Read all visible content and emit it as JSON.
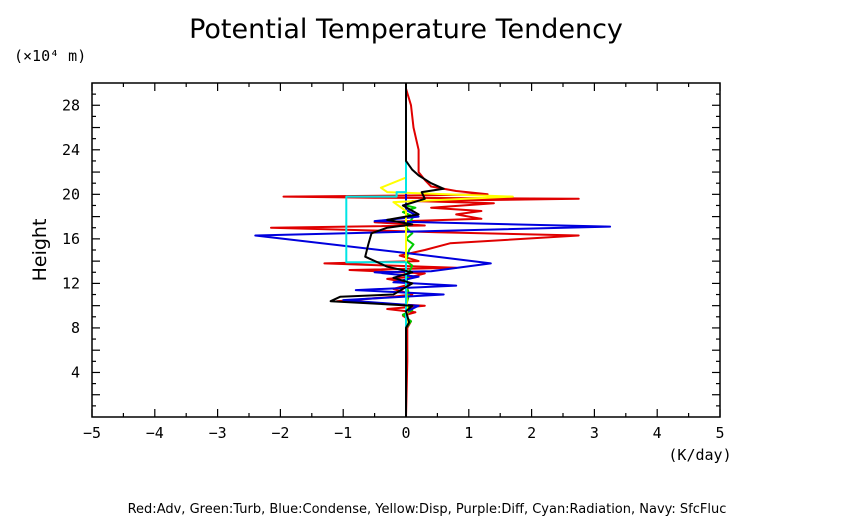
{
  "chart_data": {
    "type": "line",
    "title": "Potential Temperature Tendency",
    "ylabel": "Height",
    "y_unit_label": "(×10⁴ m)",
    "xlabel": "(K/day)",
    "xlim": [
      -5,
      5
    ],
    "ylim": [
      0,
      30
    ],
    "x_ticks": [
      -5,
      -4,
      -3,
      -2,
      -1,
      0,
      1,
      2,
      3,
      4,
      5
    ],
    "y_ticks": [
      4,
      8,
      12,
      16,
      20,
      24,
      28
    ],
    "grid": false,
    "legend_text": "Red:Adv, Green:Turb, Blue:Condense, Yellow:Disp, Purple:Diff, Cyan:Radiation, Navy: SfcFluc",
    "legend_placement": "bottom",
    "series": [
      {
        "name": "Adv",
        "color": "#e00000",
        "points": [
          [
            0,
            0
          ],
          [
            0.02,
            5
          ],
          [
            0.02,
            8
          ],
          [
            0.08,
            8.6
          ],
          [
            -0.05,
            9.1
          ],
          [
            0.15,
            9.4
          ],
          [
            -0.3,
            9.7
          ],
          [
            0.3,
            10.0
          ],
          [
            -1.1,
            10.4
          ],
          [
            -0.2,
            10.8
          ],
          [
            0.1,
            11.0
          ],
          [
            -0.2,
            11.5
          ],
          [
            0.1,
            12.0
          ],
          [
            -0.3,
            12.4
          ],
          [
            0.1,
            12.6
          ],
          [
            0.3,
            12.9
          ],
          [
            -0.9,
            13.2
          ],
          [
            0.8,
            13.4
          ],
          [
            -1.3,
            13.8
          ],
          [
            0.2,
            14.0
          ],
          [
            -0.1,
            14.5
          ],
          [
            0.3,
            15.0
          ],
          [
            0.7,
            15.6
          ],
          [
            2.75,
            16.3
          ],
          [
            0.5,
            16.6
          ],
          [
            -2.15,
            17.0
          ],
          [
            0.3,
            17.2
          ],
          [
            -0.5,
            17.5
          ],
          [
            1.2,
            17.8
          ],
          [
            0.8,
            18.2
          ],
          [
            1.2,
            18.5
          ],
          [
            0.4,
            18.8
          ],
          [
            1.4,
            19.2
          ],
          [
            0.1,
            19.4
          ],
          [
            2.75,
            19.6
          ],
          [
            -0.5,
            19.7
          ],
          [
            -1.95,
            19.8
          ],
          [
            0.3,
            19.9
          ],
          [
            1.3,
            20.0
          ],
          [
            0.8,
            20.3
          ],
          [
            0.4,
            20.7
          ],
          [
            0.3,
            21.3
          ],
          [
            0.2,
            22.0
          ],
          [
            0.2,
            24.0
          ],
          [
            0.12,
            26.0
          ],
          [
            0.08,
            28.0
          ],
          [
            0,
            29.5
          ]
        ]
      },
      {
        "name": "Turb",
        "color": "#00cc00",
        "points": [
          [
            0,
            0
          ],
          [
            0,
            8
          ],
          [
            0.08,
            8.6
          ],
          [
            -0.05,
            9.2
          ],
          [
            0.1,
            9.6
          ],
          [
            0,
            10.0
          ],
          [
            0.05,
            11.0
          ],
          [
            0,
            12.0
          ],
          [
            0.05,
            13.0
          ],
          [
            0.1,
            13.6
          ],
          [
            0,
            14.0
          ],
          [
            0.05,
            15.0
          ],
          [
            0.12,
            15.5
          ],
          [
            0,
            16.0
          ],
          [
            0.1,
            16.5
          ],
          [
            0,
            17.0
          ],
          [
            0.12,
            18.0
          ],
          [
            -0.05,
            18.4
          ],
          [
            0.15,
            18.8
          ],
          [
            0,
            19.0
          ],
          [
            0,
            30
          ]
        ]
      },
      {
        "name": "Condense",
        "color": "#0000dd",
        "points": [
          [
            0,
            0
          ],
          [
            0,
            8
          ],
          [
            0.02,
            9.5
          ],
          [
            0.2,
            10.0
          ],
          [
            -1.0,
            10.5
          ],
          [
            0.6,
            11.0
          ],
          [
            -0.8,
            11.4
          ],
          [
            0.8,
            11.8
          ],
          [
            -0.2,
            12.1
          ],
          [
            0.2,
            12.6
          ],
          [
            -0.5,
            13.0
          ],
          [
            0.4,
            13.1
          ],
          [
            1.35,
            13.8
          ],
          [
            0.2,
            14.6
          ],
          [
            -2.4,
            16.3
          ],
          [
            3.25,
            17.1
          ],
          [
            -0.5,
            17.6
          ],
          [
            0.2,
            18.0
          ],
          [
            0,
            18.6
          ],
          [
            0,
            30
          ]
        ]
      },
      {
        "name": "Disp",
        "color": "#ffff00",
        "points": [
          [
            0,
            0
          ],
          [
            0,
            8
          ],
          [
            0.02,
            9.0
          ],
          [
            0,
            12
          ],
          [
            0,
            18.5
          ],
          [
            -0.2,
            19.3
          ],
          [
            1.7,
            19.8
          ],
          [
            -0.3,
            20.2
          ],
          [
            -0.4,
            20.6
          ],
          [
            0,
            21.5
          ],
          [
            0,
            30
          ]
        ]
      },
      {
        "name": "Radiation",
        "color": "#00e5e5",
        "points": [
          [
            0,
            0
          ],
          [
            0,
            13.9
          ],
          [
            -0.95,
            13.9
          ],
          [
            -0.95,
            19.8
          ],
          [
            -0.15,
            19.8
          ],
          [
            -0.15,
            20.2
          ],
          [
            0,
            20.2
          ],
          [
            0,
            30
          ]
        ]
      },
      {
        "name": "SfcFluc",
        "color": "#000000",
        "points": [
          [
            0,
            0
          ],
          [
            0,
            8
          ],
          [
            0.05,
            8.5
          ],
          [
            0,
            9.5
          ],
          [
            0.1,
            10.0
          ],
          [
            -1.2,
            10.4
          ],
          [
            -1.05,
            10.8
          ],
          [
            -0.2,
            11.0
          ],
          [
            0.1,
            12.0
          ],
          [
            -0.2,
            12.5
          ],
          [
            0.1,
            13.0
          ],
          [
            -0.3,
            13.5
          ],
          [
            -0.65,
            14.4
          ],
          [
            -0.6,
            15.5
          ],
          [
            -0.55,
            16.5
          ],
          [
            -0.3,
            17.0
          ],
          [
            0.1,
            17.3
          ],
          [
            -0.3,
            17.7
          ],
          [
            0.2,
            18.2
          ],
          [
            -0.05,
            19.0
          ],
          [
            0.3,
            19.6
          ],
          [
            0.25,
            20.2
          ],
          [
            0.6,
            20.5
          ],
          [
            0.4,
            21.0
          ],
          [
            0.2,
            21.7
          ],
          [
            0.1,
            22.2
          ],
          [
            0,
            23
          ],
          [
            0,
            30
          ]
        ]
      }
    ]
  }
}
